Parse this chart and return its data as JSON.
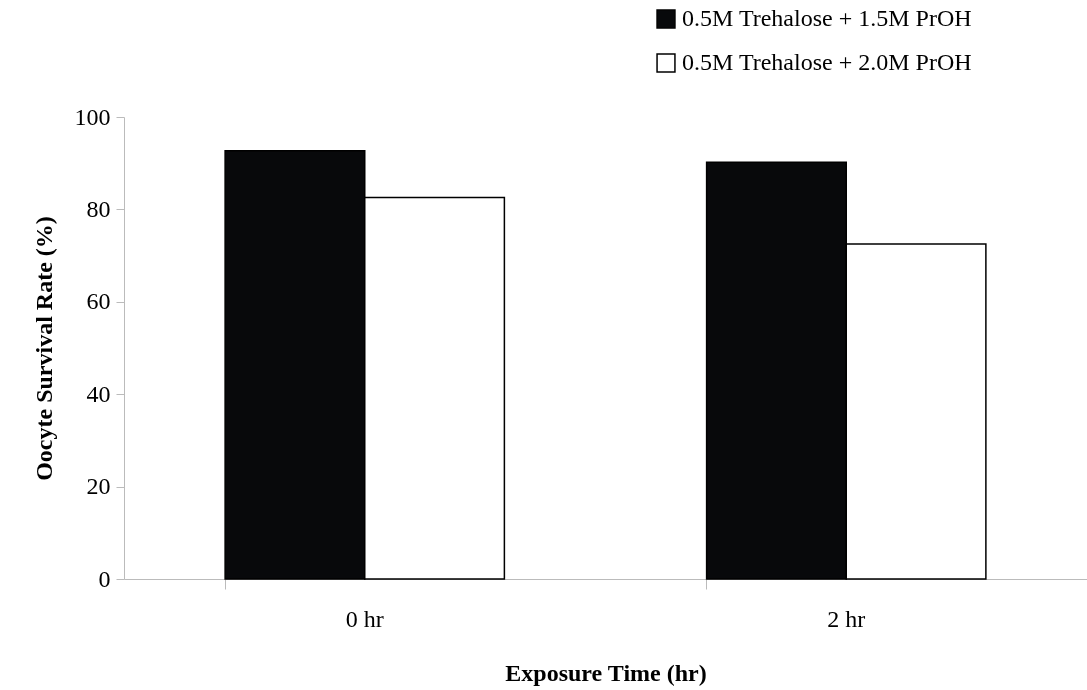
{
  "chart_data": {
    "type": "bar",
    "xlabel": "Exposure Time (hr)",
    "ylabel": "Oocyte Survival Rate (%)",
    "categories": [
      "0 hr",
      "2 hr"
    ],
    "series": [
      {
        "name": "0.5M Trehalose + 1.5M PrOH",
        "color": "#08090b",
        "values": [
          92.7,
          90.2
        ]
      },
      {
        "name": "0.5M Trehalose + 2.0M PrOH",
        "color": "#ffffff",
        "values": [
          82.6,
          72.5
        ]
      }
    ],
    "ylim": [
      0,
      100
    ],
    "yticks": [
      0,
      20,
      40,
      60,
      80,
      100
    ],
    "grid": false,
    "legend": "top right"
  }
}
